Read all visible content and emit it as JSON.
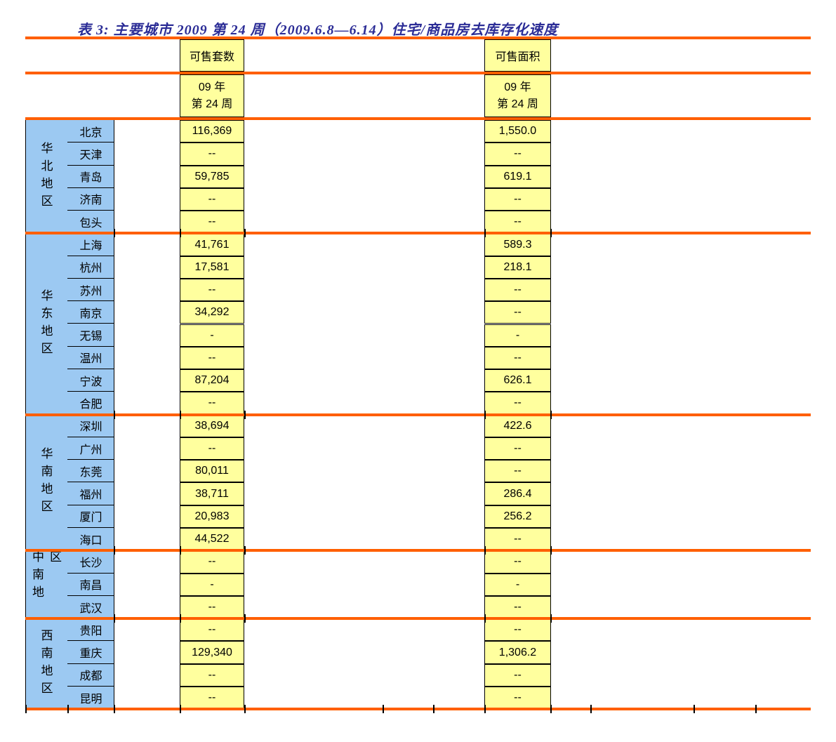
{
  "title": "表 3:  主要城市 2009 第 24 周（2009.6.8—6.14）住宅/商品房去库存化速度",
  "header": {
    "units_column": "可售套数",
    "area_column": "可售面积",
    "period": {
      "line1": "09 年",
      "line2": "第 24 周"
    }
  },
  "groups": [
    {
      "region": "华北地区",
      "rows": [
        {
          "city": "北京",
          "units": "116,369",
          "area": "1,550.0"
        },
        {
          "city": "天津",
          "units": "--",
          "area": "--"
        },
        {
          "city": "青岛",
          "units": "59,785",
          "area": "619.1"
        },
        {
          "city": "济南",
          "units": "--",
          "area": "--"
        },
        {
          "city": "包头",
          "units": "--",
          "area": "--"
        }
      ]
    },
    {
      "region": "华东地区",
      "rows": [
        {
          "city": "上海",
          "units": "41,761",
          "area": "589.3"
        },
        {
          "city": "杭州",
          "units": "17,581",
          "area": "218.1"
        },
        {
          "city": "苏州",
          "units": "--",
          "area": "--"
        },
        {
          "city": "南京",
          "units": "34,292",
          "area": "--"
        },
        {
          "city": "无锡",
          "units": "-",
          "area": "-"
        },
        {
          "city": "温州",
          "units": "--",
          "area": "--"
        },
        {
          "city": "宁波",
          "units": "87,204",
          "area": "626.1"
        },
        {
          "city": "合肥",
          "units": "--",
          "area": "--"
        }
      ]
    },
    {
      "region": "华南地区",
      "rows": [
        {
          "city": "深圳",
          "units": "38,694",
          "area": "422.6"
        },
        {
          "city": "广州",
          "units": "--",
          "area": "--"
        },
        {
          "city": "东莞",
          "units": "80,011",
          "area": "--"
        },
        {
          "city": "福州",
          "units": "38,711",
          "area": "286.4"
        },
        {
          "city": "厦门",
          "units": "20,983",
          "area": "256.2"
        },
        {
          "city": "海口",
          "units": "44,522",
          "area": "--"
        }
      ]
    },
    {
      "region": "中南地区",
      "rows": [
        {
          "city": "长沙",
          "units": "--",
          "area": "--"
        },
        {
          "city": "南昌",
          "units": "-",
          "area": "-"
        },
        {
          "city": "武汉",
          "units": "--",
          "area": "--"
        }
      ]
    },
    {
      "region": "西南地区",
      "rows": [
        {
          "city": "贵阳",
          "units": "--",
          "area": "--"
        },
        {
          "city": "重庆",
          "units": "129,340",
          "area": "1,306.2"
        },
        {
          "city": "成都",
          "units": "--",
          "area": "--"
        },
        {
          "city": "昆明",
          "units": "--",
          "area": "--"
        }
      ]
    }
  ],
  "colors": {
    "region_bg": "#9CC9F2",
    "cell_bg": "#FFFF9E",
    "rule": "#FF5F00",
    "title": "#2B2C96",
    "border": "#000000",
    "page_bg": "#FFFFFF"
  }
}
